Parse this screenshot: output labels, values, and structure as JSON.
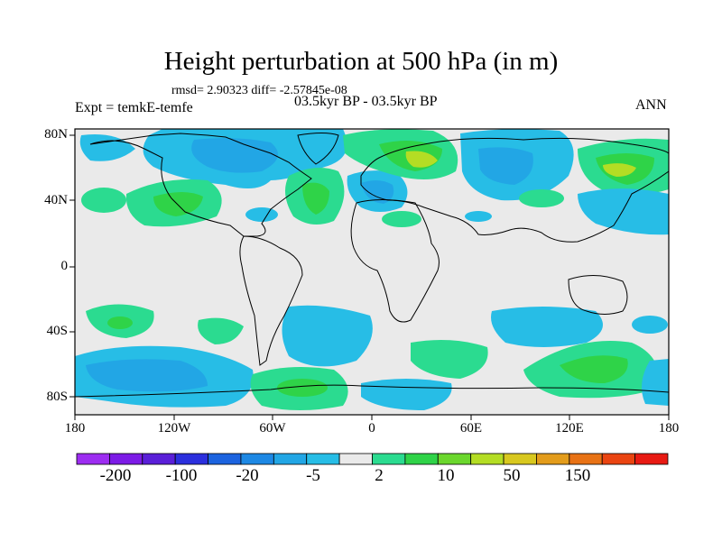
{
  "title": "Height perturbation at 500 hPa (in m)",
  "stats": "rmsd= 2.90323 diff= -2.57845e-08",
  "experiment": "Expt = temkE-temfe",
  "period": "03.5kyr BP - 03.5kyr BP",
  "season": "ANN",
  "lat_labels": [
    "80N",
    "40N",
    "0",
    "40S",
    "80S"
  ],
  "lon_labels": [
    "180",
    "120W",
    "60W",
    "0",
    "60E",
    "120E",
    "180"
  ],
  "colorbar": {
    "colors": [
      "#9d2df1",
      "#7c1be6",
      "#5a1fd8",
      "#2b2fdd",
      "#1c63df",
      "#1d88e4",
      "#22a6e5",
      "#27bde6",
      "#eaeaea",
      "#2bdb90",
      "#2fd348",
      "#6bd72d",
      "#b4dd24",
      "#d8c81f",
      "#e39c1b",
      "#e87215",
      "#ea4411",
      "#e81a13"
    ],
    "labels": [
      "-200",
      "-100",
      "-20",
      "-5",
      "2",
      "10",
      "50",
      "150"
    ]
  }
}
